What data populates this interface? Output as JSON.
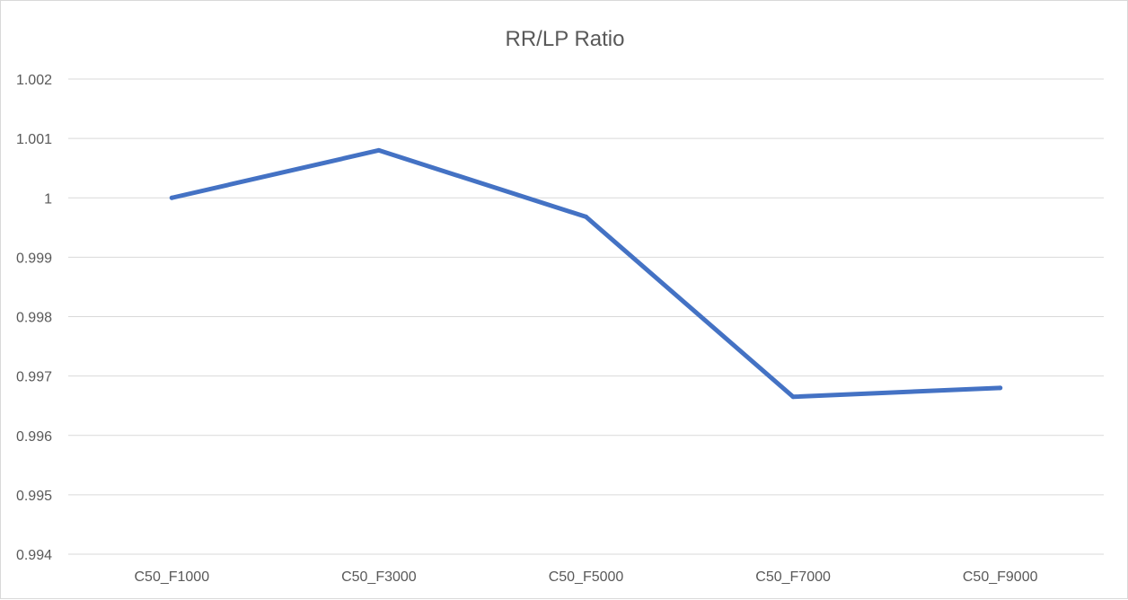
{
  "chart_data": {
    "type": "line",
    "title": "RR/LP Ratio",
    "xlabel": "",
    "ylabel": "",
    "categories": [
      "C50_F1000",
      "C50_F3000",
      "C50_F5000",
      "C50_F7000",
      "C50_F9000"
    ],
    "series": [
      {
        "name": "RR/LP Ratio",
        "values": [
          1.0,
          1.0008,
          0.99968,
          0.99665,
          0.9968
        ]
      }
    ],
    "ylim": [
      0.994,
      1.002
    ],
    "yticks": [
      "0.994",
      "0.995",
      "0.996",
      "0.997",
      "0.998",
      "0.999",
      "1",
      "1.001",
      "1.002"
    ],
    "grid": true,
    "legend": "none",
    "series_color": "#4472C4"
  }
}
